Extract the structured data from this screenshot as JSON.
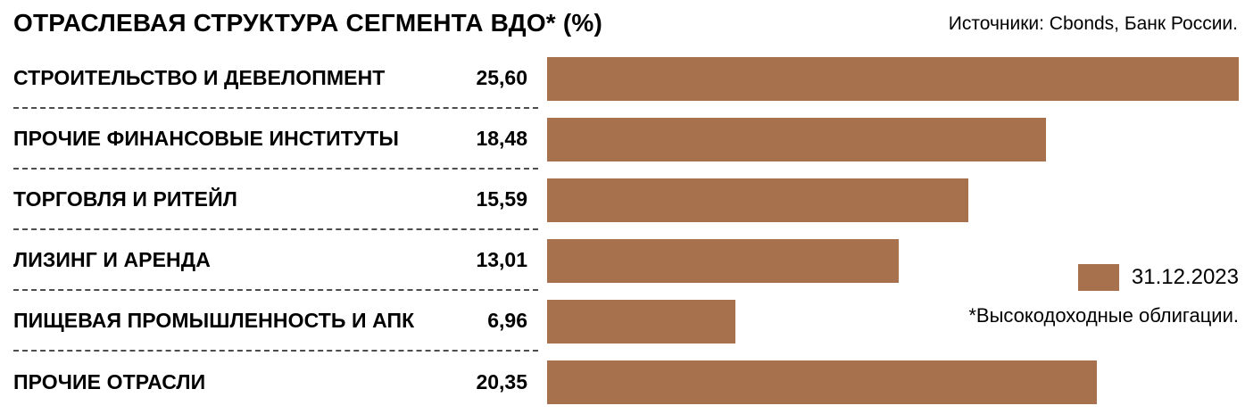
{
  "header": {
    "title": "ОТРАСЛЕВАЯ СТРУКТУРА СЕГМЕНТА ВДО* (%)",
    "sources": "Источники: Cbonds, Банк России."
  },
  "legend": {
    "label": "31.12.2023",
    "swatch_color": "#a7714d"
  },
  "footnote": "*Высокодоходные облигации.",
  "chart_data": {
    "type": "bar",
    "orientation": "horizontal",
    "title": "ОТРАСЛЕВАЯ СТРУКТУРА СЕГМЕНТА ВДО* (%)",
    "categories": [
      "СТРОИТЕЛЬСТВО И ДЕВЕЛОПМЕНТ",
      "ПРОЧИЕ ФИНАНСОВЫЕ ИНСТИТУТЫ",
      "ТОРГОВЛЯ И РИТЕЙЛ",
      "ЛИЗИНГ И АРЕНДА",
      "ПИЩЕВАЯ ПРОМЫШЛЕННОСТЬ И АПК",
      "ПРОЧИЕ ОТРАСЛИ"
    ],
    "values": [
      25.6,
      18.48,
      15.59,
      13.01,
      6.96,
      20.35
    ],
    "value_labels": [
      "25,60",
      "18,48",
      "15,59",
      "13,01",
      "6,96",
      "20,35"
    ],
    "xlabel": "",
    "ylabel": "",
    "xlim": [
      0,
      25.6
    ],
    "grid": false,
    "legend_entries": [
      "31.12.2023"
    ],
    "legend_position": "right",
    "bar_color": "#a7714d",
    "annotations": [
      "*Высокодоходные облигации."
    ]
  }
}
